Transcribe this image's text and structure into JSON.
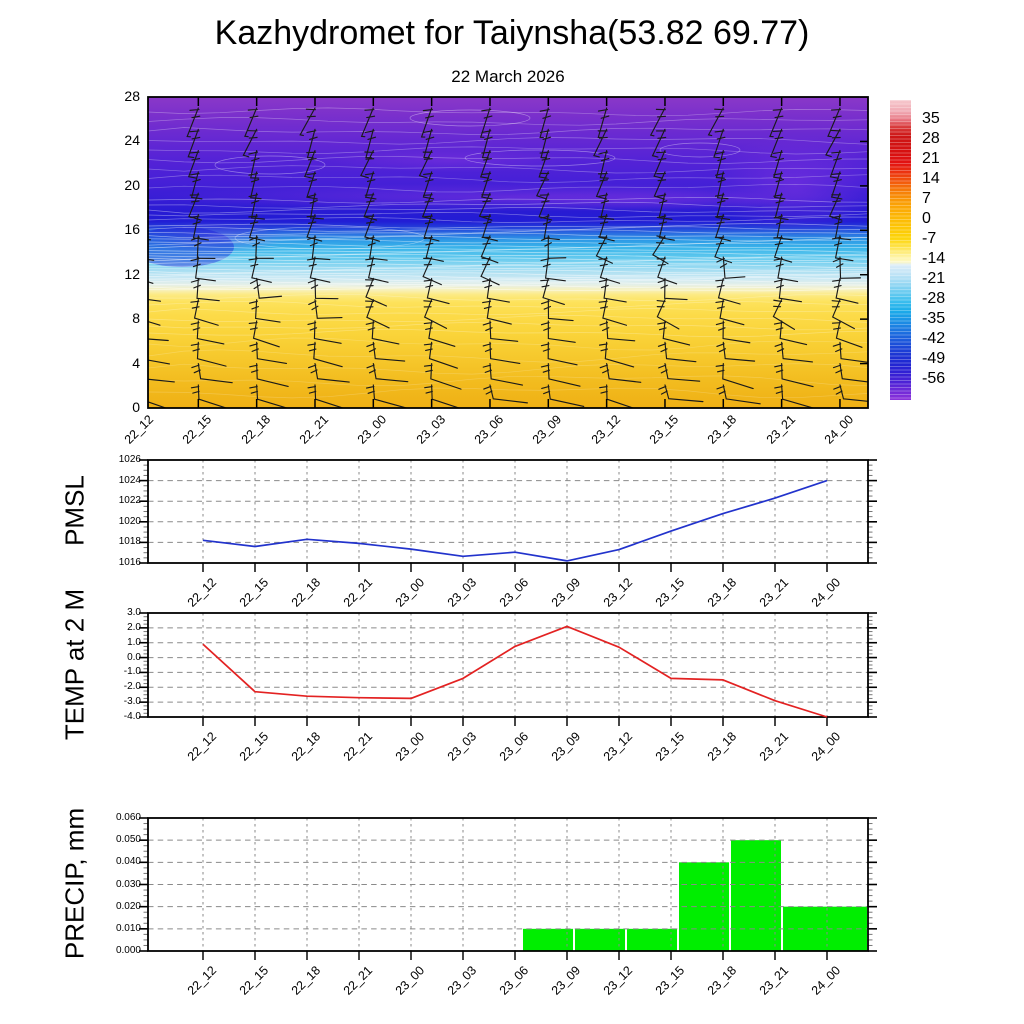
{
  "title": "Kazhydromet for Taiynsha(53.82 69.77)",
  "subtitle": "22 March 2026",
  "time_labels": [
    "22_12",
    "22_15",
    "22_18",
    "22_21",
    "23_00",
    "23_03",
    "23_06",
    "23_09",
    "23_12",
    "23_15",
    "23_18",
    "23_21",
    "24_00"
  ],
  "colors": {
    "pmsl_line": "#2233cc",
    "temp_line": "#e32222",
    "precip_bar": "#00ee00",
    "grid": "#8a8a8a",
    "frame": "#000000",
    "wind_barb": "#1a1a1a",
    "contour_line": "#ffffff"
  },
  "top_panel": {
    "ytick_labels": [
      "0",
      "4",
      "8",
      "12",
      "16",
      "20",
      "24",
      "28"
    ],
    "ylim": [
      0,
      28
    ],
    "colorbar_labels": [
      "35",
      "28",
      "21",
      "14",
      "7",
      "0",
      "-7",
      "-14",
      "-21",
      "-28",
      "-35",
      "-42",
      "-49",
      "-56"
    ],
    "wind_barbs": {
      "columns": 13,
      "rows": 14
    },
    "field_gradient": [
      [
        "0%",
        "#8a38c8"
      ],
      [
        "6%",
        "#7a30cc"
      ],
      [
        "13%",
        "#6729d2"
      ],
      [
        "20%",
        "#5523d6"
      ],
      [
        "27%",
        "#4720d7"
      ],
      [
        "33%",
        "#361dd5"
      ],
      [
        "37%",
        "#281bd3"
      ],
      [
        "40%",
        "#221dd5"
      ],
      [
        "42%",
        "#2340da"
      ],
      [
        "44%",
        "#2a70e1"
      ],
      [
        "46%",
        "#2e9ae6"
      ],
      [
        "48.5%",
        "#3ab4ea"
      ],
      [
        "51%",
        "#58c5ed"
      ],
      [
        "53.5%",
        "#80d3f0"
      ],
      [
        "56%",
        "#abdff2"
      ],
      [
        "58.5%",
        "#cde9f3"
      ],
      [
        "60.5%",
        "#e7f0e6"
      ],
      [
        "62%",
        "#f7f1bd"
      ],
      [
        "63.5%",
        "#fcea85"
      ],
      [
        "66%",
        "#fde25b"
      ],
      [
        "70%",
        "#fcdb49"
      ],
      [
        "76%",
        "#fad43a"
      ],
      [
        "84%",
        "#f6c82c"
      ],
      [
        "92%",
        "#f2bb1e"
      ],
      [
        "100%",
        "#efb015"
      ]
    ],
    "colorbar_gradient": [
      [
        "0%",
        "#f6c8cd"
      ],
      [
        "4%",
        "#f0a8b2"
      ],
      [
        "6.5%",
        "#e87884"
      ],
      [
        "9%",
        "#d93a3a"
      ],
      [
        "12%",
        "#cc1515"
      ],
      [
        "17%",
        "#d51111"
      ],
      [
        "21%",
        "#e21212"
      ],
      [
        "24%",
        "#ec3210"
      ],
      [
        "27%",
        "#f2550c"
      ],
      [
        "30%",
        "#f67a09"
      ],
      [
        "34%",
        "#fa9d06"
      ],
      [
        "38%",
        "#fcb305"
      ],
      [
        "42%",
        "#fdc406"
      ],
      [
        "46%",
        "#fdd408"
      ],
      [
        "49%",
        "#fee34a"
      ],
      [
        "52%",
        "#fef29e"
      ],
      [
        "54%",
        "#fdf8c6"
      ],
      [
        "55%",
        "#dcedf8"
      ],
      [
        "58%",
        "#c0e4f6"
      ],
      [
        "61%",
        "#9cd9f3"
      ],
      [
        "64%",
        "#6cccf0"
      ],
      [
        "67%",
        "#3dbfee"
      ],
      [
        "70%",
        "#1caeea"
      ],
      [
        "73%",
        "#1b96e6"
      ],
      [
        "76%",
        "#1c7ce2"
      ],
      [
        "79%",
        "#1c62dd"
      ],
      [
        "82%",
        "#1c4ad8"
      ],
      [
        "85%",
        "#1c34d3"
      ],
      [
        "88%",
        "#2026d2"
      ],
      [
        "91%",
        "#3220d4"
      ],
      [
        "94%",
        "#4c22d6"
      ],
      [
        "97%",
        "#6f2ad8"
      ],
      [
        "100%",
        "#8c32da"
      ]
    ]
  },
  "chart_data": [
    {
      "type": "heatmap",
      "name": "upper-air temperature cross-section",
      "description": "Filled temperature contours (deg C) vs model level (0-28) and time, with wind barbs and white contour lines",
      "x": [
        "22_12",
        "22_15",
        "22_18",
        "22_21",
        "23_00",
        "23_03",
        "23_06",
        "23_09",
        "23_12",
        "23_15",
        "23_18",
        "23_21",
        "24_00"
      ],
      "ylim": [
        0,
        28
      ],
      "yticks": [
        0,
        4,
        8,
        12,
        16,
        20,
        24,
        28
      ],
      "colorbar_ticks": [
        35,
        28,
        21,
        14,
        7,
        0,
        -7,
        -14,
        -21,
        -28,
        -35,
        -42,
        -49,
        -56
      ]
    },
    {
      "type": "line",
      "name": "pmsl",
      "ylabel": "PMSL",
      "x": [
        "22_12",
        "22_15",
        "22_18",
        "22_21",
        "23_00",
        "23_03",
        "23_06",
        "23_09",
        "23_12",
        "23_15",
        "23_18",
        "23_21",
        "24_00"
      ],
      "values": [
        1018.2,
        1017.6,
        1018.3,
        1017.9,
        1017.35,
        1016.65,
        1017.05,
        1016.2,
        1017.3,
        1019.1,
        1020.8,
        1022.3,
        1024.0
      ],
      "ylim": [
        1016,
        1026
      ],
      "ytick_labels": [
        "1016",
        "1018",
        "1020",
        "1022",
        "1024",
        "1026"
      ],
      "grid": true
    },
    {
      "type": "line",
      "name": "temp2m",
      "ylabel": "TEMP at 2 M",
      "x": [
        "22_12",
        "22_15",
        "22_18",
        "22_21",
        "23_00",
        "23_03",
        "23_06",
        "23_09",
        "23_12",
        "23_15",
        "23_18",
        "23_21",
        "24_00"
      ],
      "values": [
        0.9,
        -2.3,
        -2.6,
        -2.7,
        -2.75,
        -1.4,
        0.75,
        2.1,
        0.7,
        -1.4,
        -1.5,
        -2.9,
        -4.0
      ],
      "ylim": [
        -4,
        3
      ],
      "ytick_labels": [
        "-4.0",
        "-3.0",
        "-2.0",
        "-1.0",
        "0.0",
        "1.0",
        "2.0",
        "3.0"
      ],
      "grid": true
    },
    {
      "type": "bar",
      "name": "precip",
      "ylabel": "PRECIP, mm",
      "x": [
        "22_12",
        "22_15",
        "22_18",
        "22_21",
        "23_00",
        "23_03",
        "23_06",
        "23_09",
        "23_12",
        "23_15",
        "23_18",
        "23_21",
        "24_00"
      ],
      "values": [
        0,
        0,
        0,
        0,
        0,
        0,
        0,
        0.01,
        0.01,
        0.01,
        0.04,
        0.05,
        0.02
      ],
      "ylim": [
        0,
        0.06
      ],
      "ytick_labels": [
        "0.000",
        "0.010",
        "0.020",
        "0.030",
        "0.040",
        "0.050",
        "0.060"
      ],
      "grid": true
    }
  ]
}
